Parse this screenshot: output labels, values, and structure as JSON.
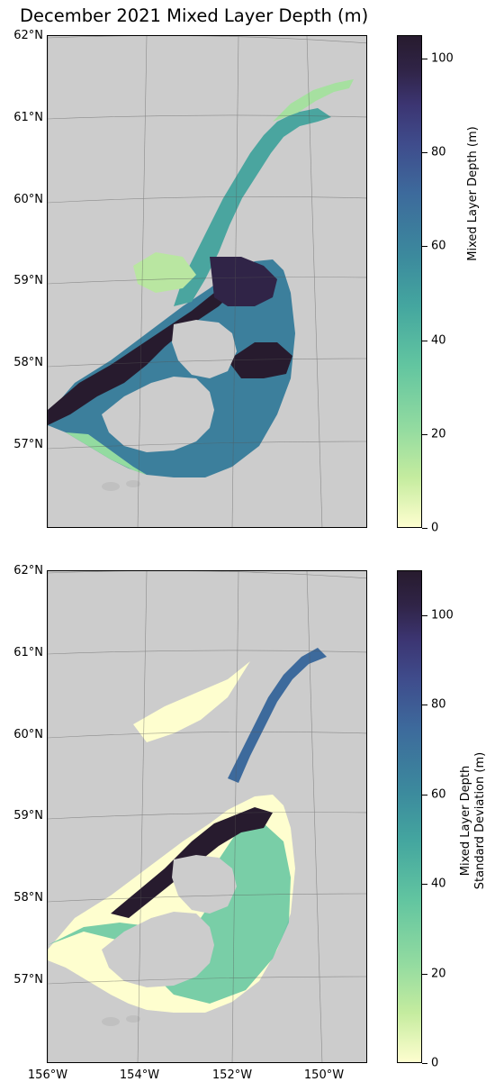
{
  "title": "December 2021 Mixed Layer Depth (m)",
  "chart_data": [
    {
      "type": "heatmap",
      "title": "December 2021 Mixed Layer Depth (m)",
      "colorbar_label": "Mixed Layer Depth (m)",
      "colorbar_ticks": [
        "0",
        "20",
        "40",
        "60",
        "80",
        "100"
      ],
      "colorbar_range": [
        0,
        105
      ],
      "lat_ticks": [
        "62°N",
        "61°N",
        "60°N",
        "59°N",
        "58°N",
        "57°N"
      ],
      "lon_ticks": [],
      "colormap": "deep",
      "land_color": "#cccccc"
    },
    {
      "type": "heatmap",
      "colorbar_label_line1": "Mixed Layer Depth",
      "colorbar_label_line2": "Standard Deviation (m)",
      "colorbar_ticks": [
        "0",
        "20",
        "40",
        "60",
        "80",
        "100"
      ],
      "colorbar_range": [
        0,
        110
      ],
      "lat_ticks": [
        "62°N",
        "61°N",
        "60°N",
        "59°N",
        "58°N",
        "57°N"
      ],
      "lon_ticks": [
        "156°W",
        "154°W",
        "152°W",
        "150°W"
      ],
      "colormap": "deep",
      "land_color": "#cccccc"
    }
  ]
}
